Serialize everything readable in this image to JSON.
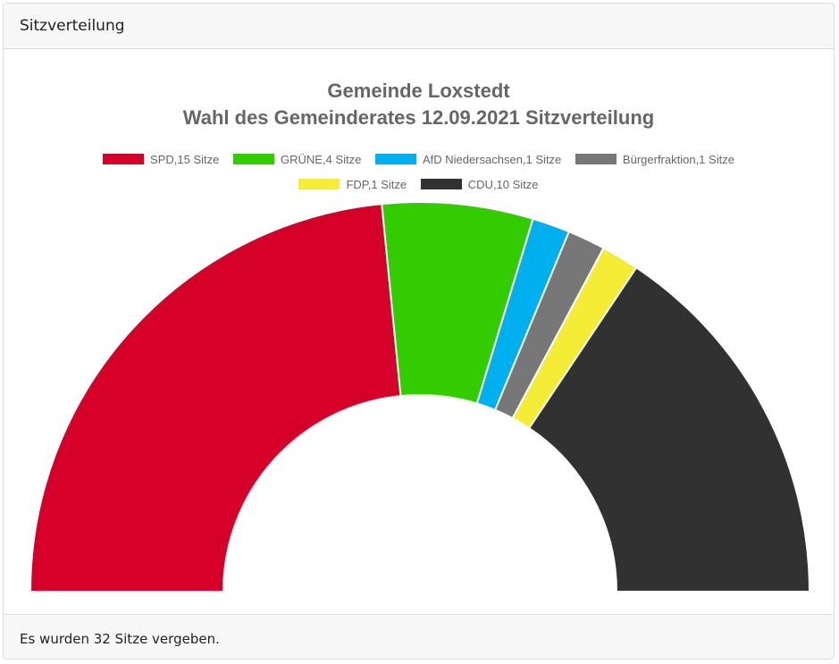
{
  "header": {
    "title": "Sitzverteilung"
  },
  "footer": {
    "text": "Es wurden 32 Sitze vergeben."
  },
  "chart_data": {
    "type": "pie",
    "subtype": "half-doughnut",
    "title_lines": [
      "Gemeinde Loxstedt",
      "Wahl des Gemeinderates 12.09.2021 Sitzverteilung"
    ],
    "legend_position": "top",
    "total_seats": 32,
    "series": [
      {
        "label": "SPD,15 Sitze",
        "party": "SPD",
        "value": 15,
        "color": "#d50029"
      },
      {
        "label": "GRÜNE,4 Sitze",
        "party": "GRÜNE",
        "value": 4,
        "color": "#33cc00"
      },
      {
        "label": "AfD Niedersachsen,1 Sitze",
        "party": "AfD Niedersachsen",
        "value": 1,
        "color": "#00b0ee"
      },
      {
        "label": "Bürgerfraktion,1 Sitze",
        "party": "Bürgerfraktion",
        "value": 1,
        "color": "#777777"
      },
      {
        "label": "FDP,1 Sitze",
        "party": "FDP",
        "value": 1,
        "color": "#f5ec36"
      },
      {
        "label": "CDU,10 Sitze",
        "party": "CDU",
        "value": 10,
        "color": "#313131"
      }
    ]
  }
}
